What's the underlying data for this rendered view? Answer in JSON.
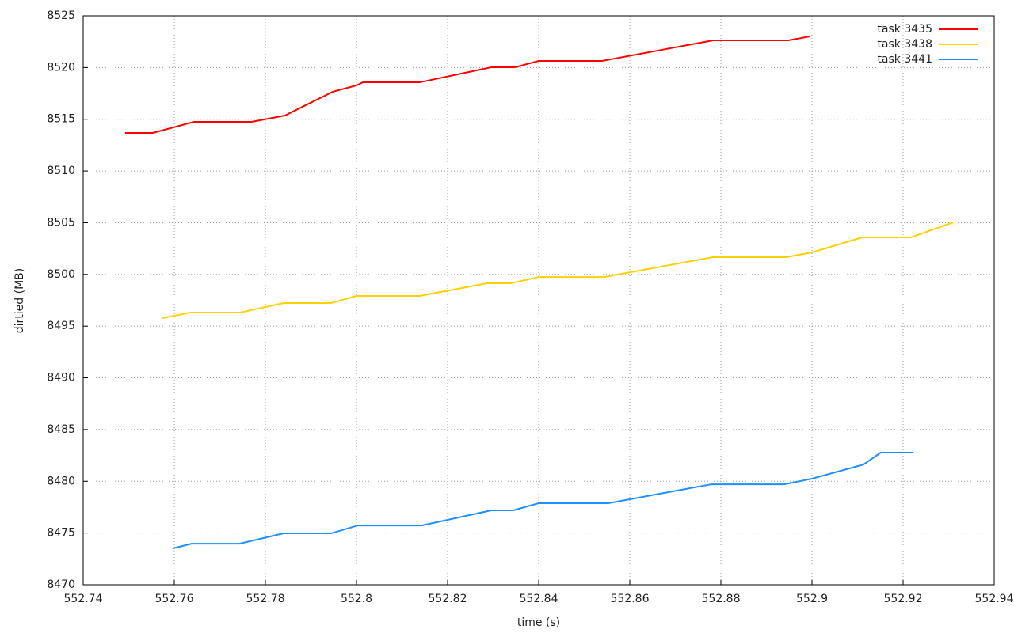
{
  "chart_data": {
    "type": "line",
    "xlabel": "time (s)",
    "ylabel": "dirtied (MB)",
    "xlim": [
      552.74,
      552.94
    ],
    "xticks": [
      552.74,
      552.76,
      552.78,
      552.8,
      552.82,
      552.84,
      552.86,
      552.88,
      552.9,
      552.92,
      552.94
    ],
    "ylim": [
      8470,
      8525
    ],
    "yticks": [
      8470,
      8475,
      8480,
      8485,
      8490,
      8495,
      8500,
      8505,
      8510,
      8515,
      8520,
      8525
    ],
    "grid": true,
    "legend": "upper right",
    "series": [
      {
        "name": "task 3435",
        "color": "#ff0000",
        "x": [
          552.7492,
          552.7553,
          552.7643,
          552.777,
          552.7843,
          552.7948,
          552.8,
          552.8014,
          552.8139,
          552.8296,
          552.8348,
          552.84,
          552.8539,
          552.8783,
          552.8948,
          552.8995
        ],
        "values": [
          8513.68,
          8513.68,
          8514.75,
          8514.75,
          8515.36,
          8517.66,
          8518.27,
          8518.57,
          8518.57,
          8520.03,
          8520.03,
          8520.64,
          8520.64,
          8522.63,
          8522.63,
          8523.01
        ]
      },
      {
        "name": "task 3438",
        "color": "#ffd000",
        "x": [
          552.7574,
          552.7635,
          552.7744,
          552.784,
          552.7944,
          552.8,
          552.8139,
          552.8287,
          552.8339,
          552.84,
          552.8543,
          552.8783,
          552.8943,
          552.9,
          552.911,
          552.9217,
          552.931
        ],
        "values": [
          8495.78,
          8496.31,
          8496.31,
          8497.23,
          8497.23,
          8497.92,
          8497.92,
          8499.14,
          8499.14,
          8499.75,
          8499.75,
          8501.67,
          8501.67,
          8502.13,
          8503.58,
          8503.58,
          8505.03
        ]
      },
      {
        "name": "task 3441",
        "color": "#1e8fff",
        "x": [
          552.7597,
          552.7638,
          552.7743,
          552.784,
          552.7944,
          552.8003,
          552.8143,
          552.8296,
          552.8344,
          552.84,
          552.8553,
          552.8779,
          552.8939,
          552.9,
          552.9113,
          552.9151,
          552.9223
        ],
        "values": [
          8473.52,
          8473.97,
          8473.97,
          8474.97,
          8474.97,
          8475.73,
          8475.73,
          8477.19,
          8477.19,
          8477.88,
          8477.88,
          8479.71,
          8479.71,
          8480.25,
          8481.62,
          8482.77,
          8482.77
        ]
      }
    ]
  }
}
